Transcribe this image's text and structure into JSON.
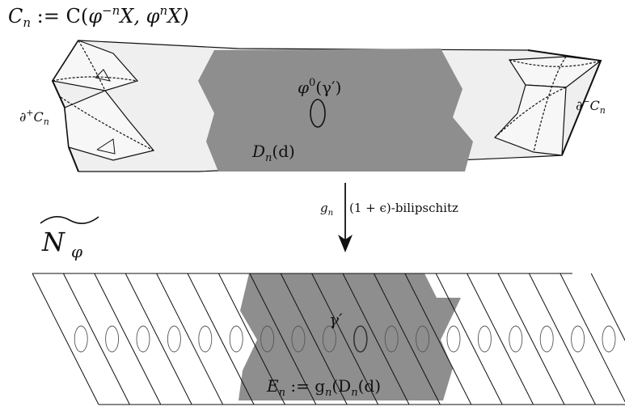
{
  "title": {
    "lhs": "C",
    "lhs_sub": "n",
    "assign": " := C(",
    "phi1": "φ",
    "exp1": "−n",
    "x1": "X, ",
    "phi2": "φ",
    "exp2": "n",
    "x2": "X)"
  },
  "top_block": {
    "left_boundary": {
      "main": "∂",
      "sup": "+",
      "c": "C",
      "sub": "n"
    },
    "right_boundary": {
      "main": "∂",
      "sup": "−",
      "c": "C",
      "sub": "n"
    },
    "curve_label": {
      "phi": "φ",
      "sup": "0",
      "rest": "(γ′)"
    },
    "disk_label": {
      "d": "D",
      "sub": "n",
      "rest": "(d)"
    }
  },
  "arrow": {
    "map": "g",
    "map_sub": "n",
    "description": "(1 + ϵ)-bilipschitz"
  },
  "cover_label": {
    "main": "N",
    "sub": "φ",
    "accent": "~"
  },
  "bottom_block": {
    "curve_label": "γ′",
    "image_label": {
      "e": "E",
      "sub": "n",
      "mid": " := g",
      "sub2": "n",
      "rest": "(D",
      "sub3": "n",
      "end": "(d)"
    }
  },
  "colors": {
    "disk_fill": "#8e8e8e",
    "collar_fill": "#efefef",
    "stroke": "#111111"
  }
}
